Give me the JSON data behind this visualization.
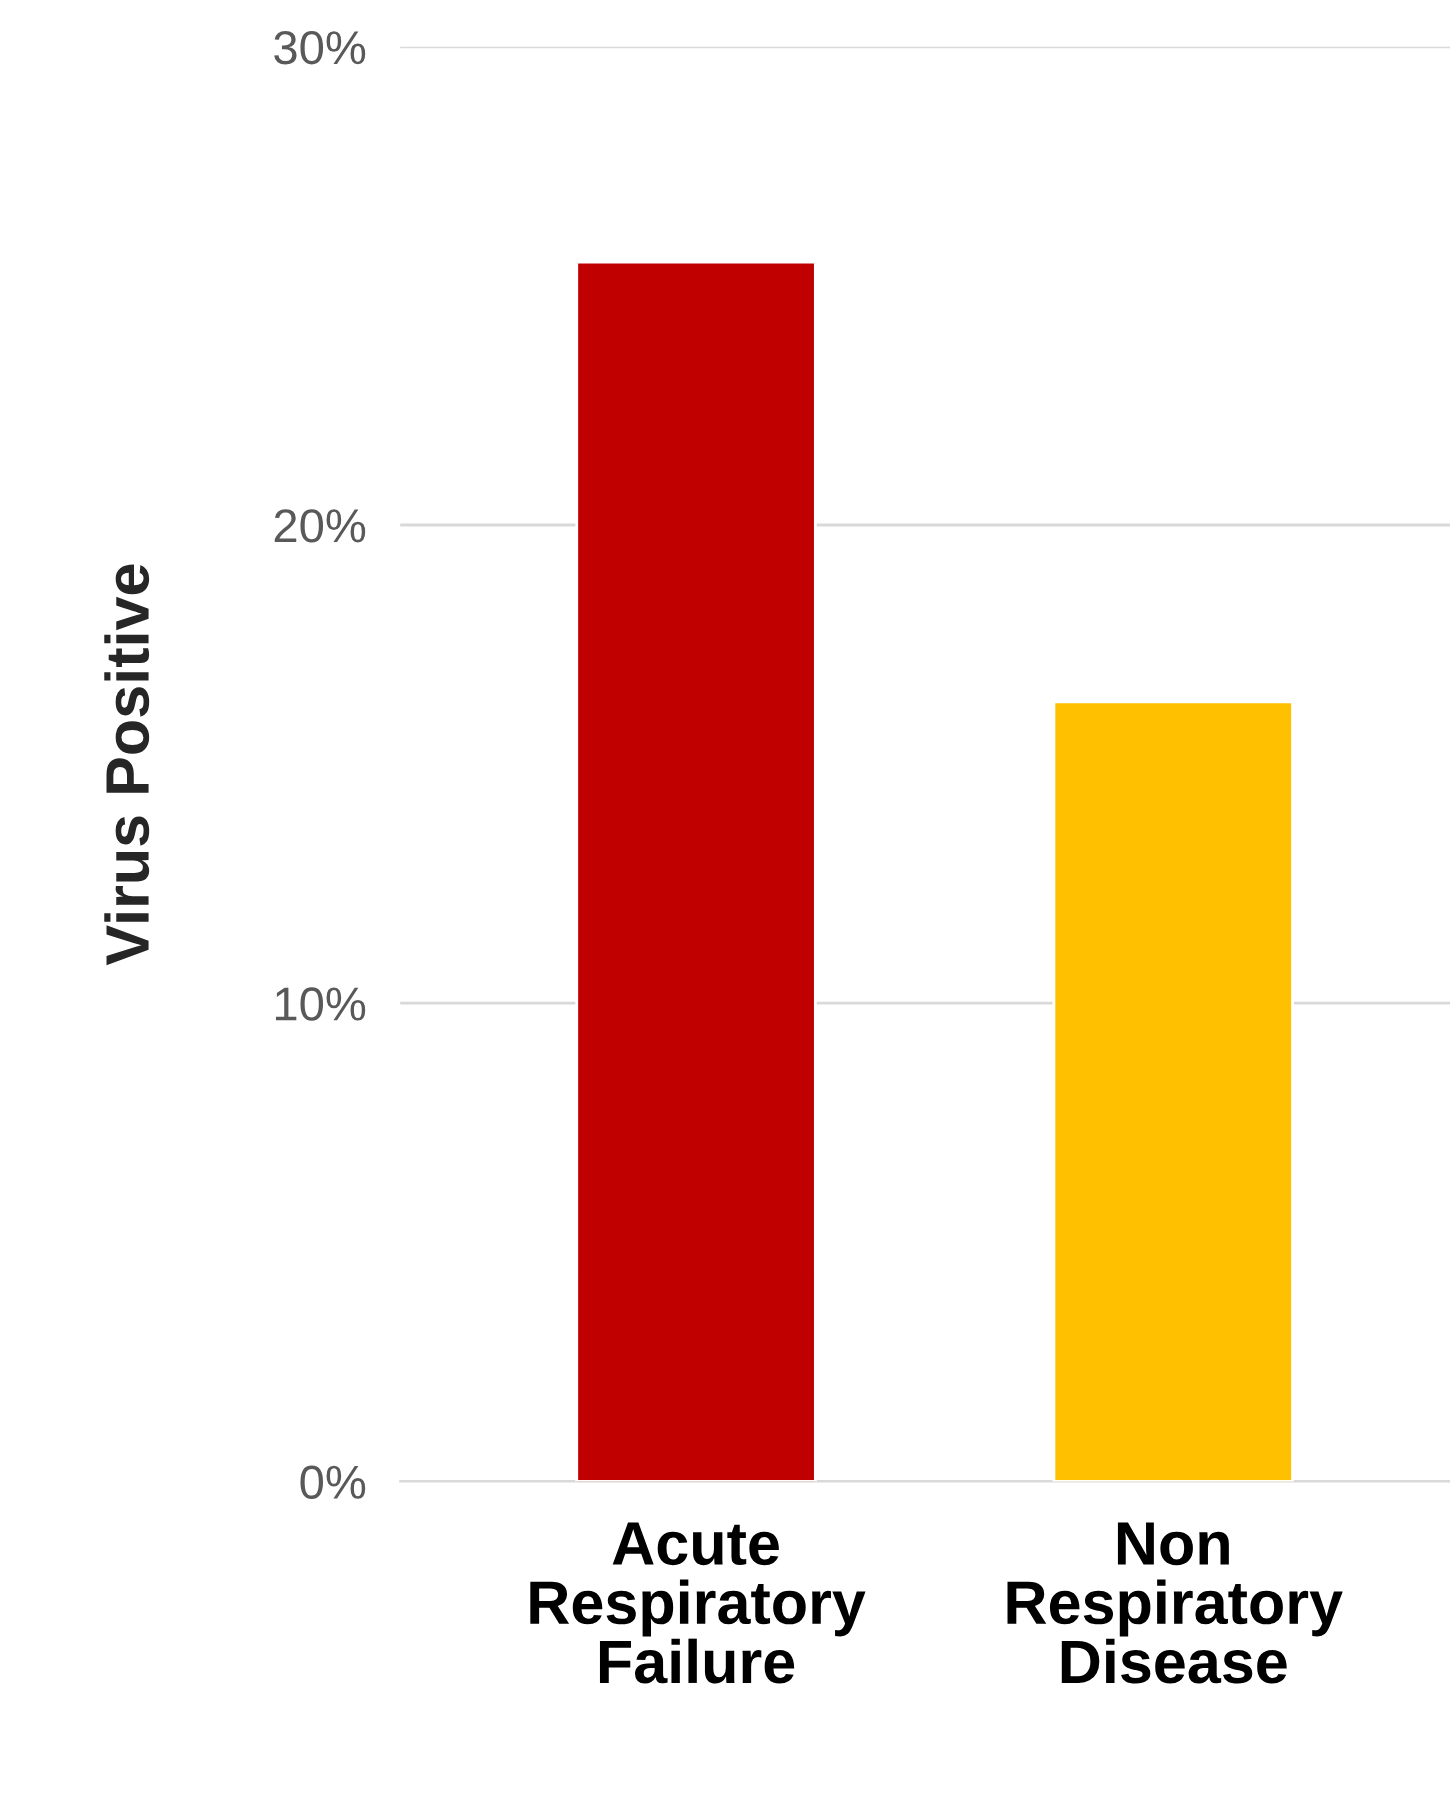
{
  "chart_data": {
    "type": "bar",
    "ylabel": "Virus Positive",
    "categories": [
      "Acute\nRespiratory\nFailure",
      "Non\nRespiratory\nDisease"
    ],
    "values": [
      25.5,
      16.3
    ],
    "colors": [
      "#c00000",
      "#ffc000"
    ],
    "ylim": [
      0,
      30
    ],
    "yticks": [
      {
        "value": 0,
        "label": "0%"
      },
      {
        "value": 10,
        "label": "10%"
      },
      {
        "value": 20,
        "label": "20%"
      },
      {
        "value": 30,
        "label": "30%"
      }
    ],
    "grid": "y",
    "legend": false
  }
}
